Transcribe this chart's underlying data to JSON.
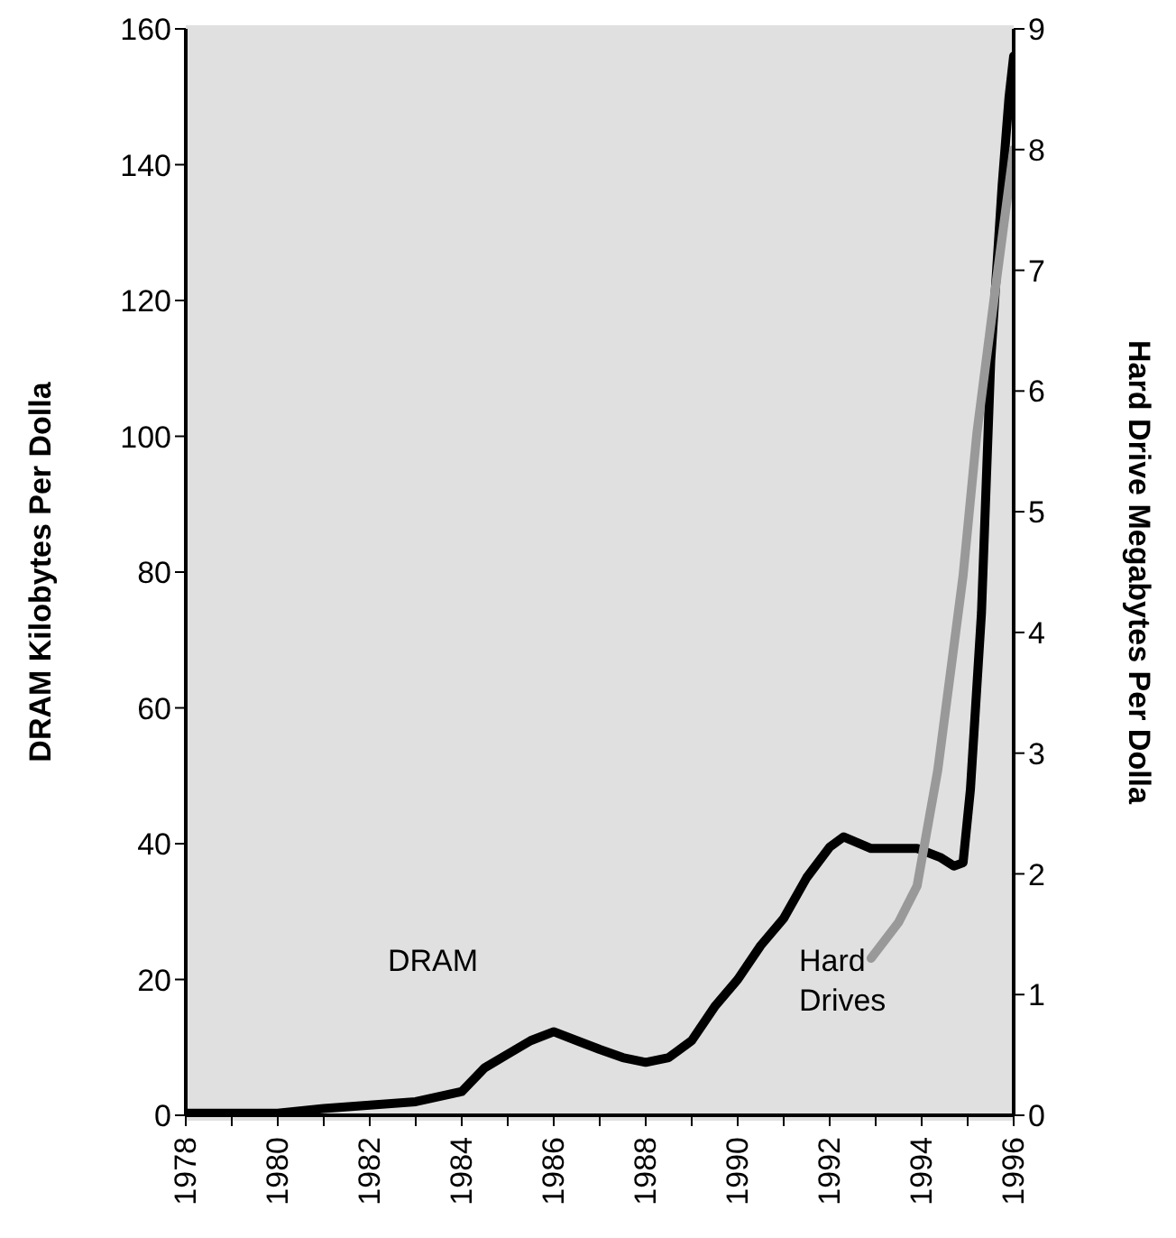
{
  "chart_data": {
    "type": "line",
    "ylabel": "DRAM Kilobytes Per Dolla",
    "y2label": "Hard Drive Megabytes Per Dolla",
    "xlim": [
      1978,
      1996
    ],
    "xticks": [
      1978,
      {
        "value": 1979,
        "label": null
      },
      1980,
      {
        "value": 1981,
        "label": null
      },
      1982,
      {
        "value": 1983,
        "label": null
      },
      1984,
      {
        "value": 1985,
        "label": null
      },
      1986,
      {
        "value": 1987,
        "label": null
      },
      1988,
      {
        "value": 1989,
        "label": null
      },
      1990,
      {
        "value": 1991,
        "label": null
      },
      1992,
      {
        "value": 1993,
        "label": null
      },
      1994,
      {
        "value": 1995,
        "label": null
      },
      1996
    ],
    "ylim": [
      0,
      160
    ],
    "yticks": [
      0,
      20,
      40,
      60,
      80,
      100,
      120,
      140,
      160
    ],
    "y2lim": [
      0,
      9
    ],
    "y2ticks": [
      0,
      1,
      2,
      3,
      4,
      5,
      6,
      7,
      8,
      9
    ],
    "series": [
      {
        "name": "DRAM",
        "color": "#000000",
        "x": [
          1978,
          1979,
          1980,
          1981,
          1982,
          1983,
          1984,
          1984.5,
          1985,
          1985.5,
          1986,
          1986.5,
          1987,
          1987.5,
          1988,
          1988.5,
          1989,
          1989.5,
          1990,
          1990.5,
          1991,
          1991.5,
          1992,
          1992.3,
          1992.9,
          1993.9,
          1994.4,
          1994.7,
          1994.9,
          1995.06,
          1995.3,
          1995.5,
          1995.75,
          1995.9,
          1996
        ],
        "values": [
          0.3,
          0.3,
          0.3,
          1,
          1.5,
          2,
          3.5,
          7,
          9,
          11,
          12.3,
          11,
          9.7,
          8.5,
          7.8,
          8.5,
          11,
          16,
          20,
          25,
          29,
          35,
          39.5,
          41,
          39.3,
          39.3,
          38,
          36.7,
          37.2,
          48,
          74,
          111,
          137,
          150,
          156
        ]
      },
      {
        "name": "Hard Drives",
        "color": "#999999",
        "axis": "y2",
        "x": [
          1992.9,
          1993.5,
          1993.9,
          1994.35,
          1994.9,
          1995.2,
          1995.6,
          1996
        ],
        "values": [
          1.3,
          1.6,
          1.9,
          2.86,
          4.47,
          5.65,
          6.84,
          8.0
        ]
      }
    ]
  }
}
